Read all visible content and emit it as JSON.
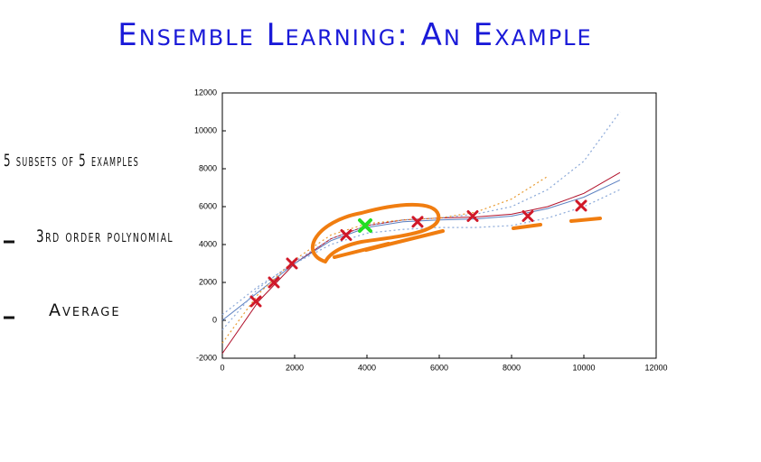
{
  "title": "Ensemble Learning: An Example",
  "bullets": [
    "5 subsets of 5 examples",
    "3rd order polynomial",
    "Average"
  ],
  "chart_data": {
    "type": "line",
    "x": [
      0,
      1000,
      2000,
      3000,
      4000,
      5000,
      6000,
      7000,
      8000,
      9000,
      10000,
      11000
    ],
    "series": [
      {
        "color": "#b0102a",
        "dashed": false,
        "values": [
          -1750,
          1000,
          3000,
          4300,
          5000,
          5300,
          5400,
          5450,
          5600,
          6000,
          6700,
          7800
        ]
      },
      {
        "color": "#5a7fc0",
        "dashed": false,
        "values": [
          0,
          1500,
          3000,
          4200,
          4900,
          5200,
          5300,
          5350,
          5500,
          5900,
          6500,
          7400
        ]
      },
      {
        "color": "#8aa8d8",
        "dashed": true,
        "values": [
          -500,
          1700,
          3100,
          4300,
          5000,
          5300,
          5400,
          5600,
          6000,
          6900,
          8400,
          11000
        ]
      },
      {
        "color": "#e89a30",
        "dashed": true,
        "values": [
          -1200,
          1400,
          3200,
          4500,
          5100,
          5300,
          5400,
          5700,
          6400,
          7600,
          null,
          null
        ]
      },
      {
        "color": "#8aa8d8",
        "dashed": true,
        "values": [
          300,
          1800,
          3000,
          4000,
          4600,
          4800,
          4900,
          4900,
          5000,
          5400,
          6000,
          6900
        ]
      }
    ],
    "points": {
      "color": "#d01828",
      "x": [
        925,
        1425,
        1925,
        3425,
        5400,
        6925,
        8450,
        9925
      ],
      "values": [
        1000,
        2000,
        3000,
        4500,
        5200,
        5500,
        5500,
        6050
      ]
    },
    "highlight": {
      "color": "#22dd22",
      "x": [
        3950
      ],
      "values": [
        5000
      ]
    },
    "xlim": [
      0,
      12000
    ],
    "xticks": [
      0,
      2000,
      4000,
      6000,
      8000,
      10000,
      12000
    ],
    "ylim": [
      -2000,
      12000
    ],
    "yticks": [
      -2000,
      0,
      2000,
      4000,
      6000,
      8000,
      10000,
      12000
    ]
  }
}
